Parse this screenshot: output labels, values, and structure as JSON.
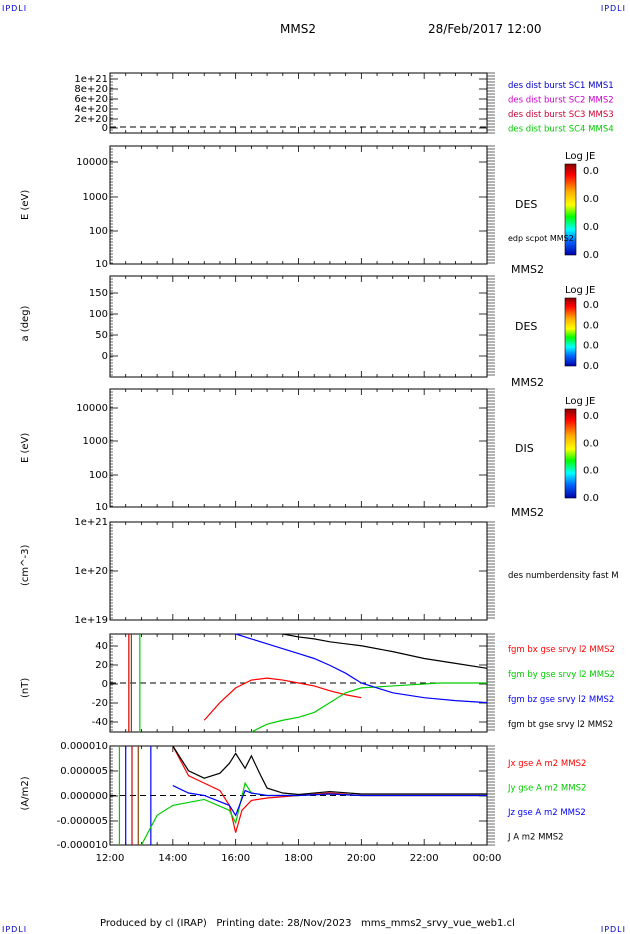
{
  "corners": {
    "tl": "IPDLI",
    "tr": "IPDLI",
    "bl": "IPDLI",
    "br": "IPDLI"
  },
  "header": {
    "spacecraft": "MMS2",
    "datetime": "28/Feb/2017 12:00"
  },
  "footer": {
    "text": "Produced by cl (IRAP)   Printing date: 28/Nov/2023   mms_mms2_srvy_vue_web1.cl"
  },
  "colors": {
    "red": "#ff0000",
    "green": "#00cc00",
    "blue": "#0000ff",
    "black": "#000000",
    "magenta": "#cc00cc",
    "crimson": "#cc0033"
  },
  "chart_data": [
    {
      "type": "line",
      "panel": "des-dist",
      "yticks": [
        "1e+21",
        "8e+20",
        "6e+20",
        "4e+20",
        "2e+20",
        "0"
      ],
      "ylim": [
        0,
        1.2e+21
      ],
      "legend": [
        {
          "name": "des dist burst SC1 MMS1",
          "color": "#0000cc"
        },
        {
          "name": "des dist burst SC2 MMS2",
          "color": "#cc00cc"
        },
        {
          "name": "des dist burst SC3 MMS3",
          "color": "#cc0033"
        },
        {
          "name": "des dist burst SC4 MMS4",
          "color": "#00cc00"
        }
      ]
    },
    {
      "type": "heatmap",
      "panel": "des-energy",
      "ylabel": "E (eV)",
      "scale": "log",
      "yticks": [
        "10000",
        "1000",
        "100",
        "10"
      ],
      "right_label": "DES",
      "bottom_right": "MMS2",
      "extra": "edp scpot MMS2",
      "colorbar": {
        "title": "Log JE",
        "ticks": [
          "0.0",
          "0.0",
          "0.0",
          "0.0"
        ]
      }
    },
    {
      "type": "heatmap",
      "panel": "des-pitch",
      "ylabel": "a (deg)",
      "yticks": [
        "150",
        "100",
        "50",
        "0"
      ],
      "right_label": "DES",
      "bottom_right": "MMS2",
      "colorbar": {
        "title": "Log JE",
        "ticks": [
          "0.0",
          "0.0",
          "0.0",
          "0.0"
        ]
      }
    },
    {
      "type": "heatmap",
      "panel": "dis-energy",
      "ylabel": "E (eV)",
      "scale": "log",
      "yticks": [
        "10000",
        "1000",
        "100",
        "10"
      ],
      "right_label": "DIS",
      "bottom_right": "MMS2",
      "colorbar": {
        "title": "Log JE",
        "ticks": [
          "0.0",
          "0.0",
          "0.0",
          "0.0"
        ]
      }
    },
    {
      "type": "line",
      "panel": "density",
      "ylabel": "(cm^-3)",
      "scale": "log",
      "yticks": [
        "1e+21",
        "1e+20",
        "1e+19"
      ],
      "legend": [
        {
          "name": "des numberdensity fast M",
          "color": "#000000"
        }
      ]
    },
    {
      "type": "line",
      "panel": "fgm",
      "ylabel": "(nT)",
      "ylim": [
        -50,
        50
      ],
      "yticks": [
        "40",
        "20",
        "0",
        "-20",
        "-40"
      ],
      "legend": [
        {
          "name": "fgm bx gse srvy l2 MMS2",
          "color": "#ff0000"
        },
        {
          "name": "fgm by gse srvy l2 MMS2",
          "color": "#00cc00"
        },
        {
          "name": "fgm bz gse srvy l2 MMS2",
          "color": "#0000ff"
        },
        {
          "name": "fgm bt gse srvy l2 MMS2",
          "color": "#000000"
        }
      ],
      "series": [
        {
          "name": "fgm bx gse srvy l2 MMS2",
          "x": [
            15.0,
            15.5,
            16.0,
            16.5,
            17.0,
            17.5,
            18.0,
            18.5,
            19.0,
            19.5,
            20.0
          ],
          "values": [
            -38,
            -20,
            -5,
            3,
            5,
            3,
            0,
            -3,
            -8,
            -12,
            -15
          ]
        },
        {
          "name": "fgm by gse srvy l2 MMS2",
          "x": [
            16.5,
            17.0,
            17.5,
            18.0,
            18.5,
            19.0,
            19.5,
            20.0,
            20.5,
            21.0,
            21.5,
            22.0,
            22.5,
            23.0,
            23.5,
            24.0
          ],
          "values": [
            -50,
            -42,
            -38,
            -35,
            -30,
            -20,
            -10,
            -5,
            -4,
            -3,
            -2,
            -1,
            0,
            0,
            0,
            0
          ]
        },
        {
          "name": "fgm bz gse srvy l2 MMS2",
          "x": [
            16.0,
            16.5,
            17.0,
            17.5,
            18.0,
            18.5,
            19.0,
            19.5,
            20.0,
            21.0,
            22.0,
            23.0,
            24.0
          ],
          "values": [
            50,
            45,
            40,
            35,
            30,
            25,
            18,
            10,
            0,
            -10,
            -15,
            -18,
            -20
          ]
        },
        {
          "name": "fgm bt gse srvy l2 MMS2",
          "x": [
            17.5,
            18.0,
            18.5,
            19.0,
            19.5,
            20.0,
            21.0,
            22.0,
            23.0,
            24.0
          ],
          "values": [
            50,
            47,
            45,
            42,
            40,
            38,
            32,
            25,
            20,
            15
          ]
        }
      ]
    },
    {
      "type": "line",
      "panel": "current",
      "ylabel": "(A/m2)",
      "ylim": [
        -1e-05,
        1e-05
      ],
      "yticks": [
        "0.000010",
        "0.000005",
        "0.000000",
        "-0.000005",
        "-0.000010"
      ],
      "xticks": [
        "12:00",
        "14:00",
        "16:00",
        "18:00",
        "20:00",
        "22:00",
        "00:00"
      ],
      "legend": [
        {
          "name": "Jx gse A m2 MMS2",
          "color": "#ff0000"
        },
        {
          "name": "Jy gse A m2 MMS2",
          "color": "#00cc00"
        },
        {
          "name": "Jz gse A m2 MMS2",
          "color": "#0000ff"
        },
        {
          "name": "J A m2 MMS2",
          "color": "#000000"
        }
      ],
      "series": [
        {
          "name": "Jx gse A m2 MMS2",
          "x": [
            14.0,
            14.5,
            15.0,
            15.5,
            15.8,
            16.0,
            16.2,
            16.5,
            17.0,
            18.0,
            19.0,
            20.0,
            24.0
          ],
          "values": [
            1e-05,
            4e-06,
            2.5e-06,
            1e-06,
            -2e-06,
            -7.5e-06,
            -3e-06,
            -1e-06,
            -5e-07,
            0,
            5e-07,
            0,
            0
          ]
        },
        {
          "name": "Jy gse A m2 MMS2",
          "x": [
            13.0,
            13.5,
            14.0,
            15.0,
            15.8,
            16.0,
            16.3,
            16.5,
            17.0,
            18.0,
            19.0,
            20.0,
            24.0
          ],
          "values": [
            -1e-05,
            -4e-06,
            -2e-06,
            -8e-07,
            -3e-06,
            -5.5e-06,
            2.5e-06,
            5e-07,
            0,
            0,
            3e-07,
            0,
            0
          ]
        },
        {
          "name": "Jz gse A m2 MMS2",
          "x": [
            14.0,
            14.5,
            15.0,
            15.8,
            16.0,
            16.3,
            16.5,
            17.0,
            18.0,
            19.0,
            20.0,
            24.0
          ],
          "values": [
            2e-06,
            5e-07,
            0,
            -2e-06,
            -4e-06,
            1e-06,
            5e-07,
            0,
            0,
            3e-07,
            0,
            0
          ]
        },
        {
          "name": "J A m2 MMS2",
          "x": [
            14.0,
            14.5,
            15.0,
            15.5,
            15.8,
            16.0,
            16.3,
            16.5,
            16.8,
            17.0,
            17.5,
            18.0,
            19.0,
            20.0,
            24.0
          ],
          "values": [
            1e-05,
            5e-06,
            3.5e-06,
            4.5e-06,
            6.5e-06,
            8.5e-06,
            5.5e-06,
            8e-06,
            4e-06,
            1.5e-06,
            5e-07,
            2e-07,
            8e-07,
            3e-07,
            3e-07
          ]
        }
      ]
    }
  ]
}
